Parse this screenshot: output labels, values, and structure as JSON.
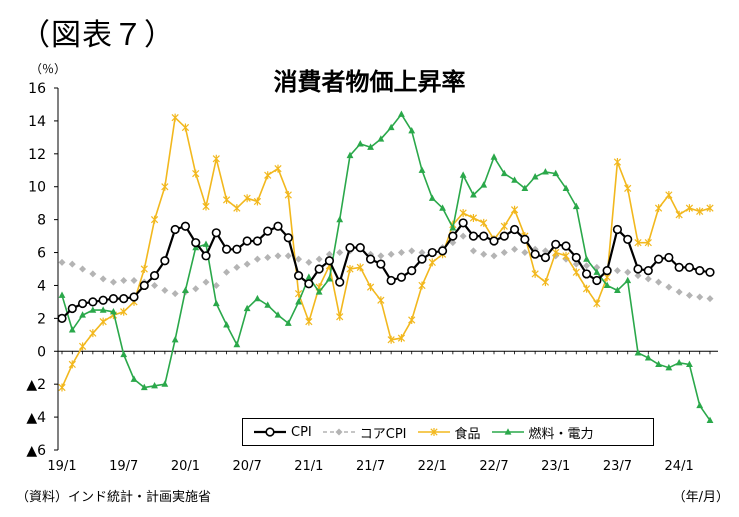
{
  "figure_label": "（図表７）",
  "footer": {
    "source": "（資料）インド統計・計画実施省",
    "x_unit": "（年/月）"
  },
  "chart_data": {
    "type": "line",
    "title": "消費者物価上昇率",
    "ylabel": "（％）",
    "ylim": [
      -6,
      16
    ],
    "y_ticks": [
      16,
      14,
      12,
      10,
      8,
      6,
      4,
      2,
      0,
      -2,
      -4,
      -6
    ],
    "y_tick_labels": [
      "16",
      "14",
      "12",
      "10",
      "8",
      "6",
      "4",
      "2",
      "0",
      "▲2",
      "▲4",
      "▲6"
    ],
    "x_tick_labels": [
      "19/1",
      "19/7",
      "20/1",
      "20/7",
      "21/1",
      "21/7",
      "22/1",
      "22/7",
      "23/1",
      "23/7",
      "24/1"
    ],
    "x_tick_every": 6,
    "legend_position": "bottom-center",
    "grid": false,
    "series": [
      {
        "name": "CPI",
        "color": "#000000",
        "marker": "circle",
        "values": [
          2.0,
          2.6,
          2.9,
          3.0,
          3.1,
          3.2,
          3.2,
          3.3,
          4.0,
          4.6,
          5.5,
          7.4,
          7.6,
          6.6,
          5.8,
          7.2,
          6.2,
          6.2,
          6.7,
          6.7,
          7.3,
          7.6,
          6.9,
          4.6,
          4.1,
          5.0,
          5.5,
          4.2,
          6.3,
          6.3,
          5.6,
          5.3,
          4.3,
          4.5,
          4.9,
          5.6,
          6.0,
          6.1,
          7.0,
          7.8,
          7.0,
          7.0,
          6.7,
          7.0,
          7.4,
          6.8,
          5.9,
          5.7,
          6.5,
          6.4,
          5.7,
          4.7,
          4.3,
          4.9,
          7.4,
          6.8,
          5.0,
          4.9,
          5.6,
          5.7,
          5.1,
          5.1,
          4.9,
          4.8
        ]
      },
      {
        "name": "コアCPI",
        "color": "#b4b4b4",
        "marker": "diamond",
        "values": [
          5.4,
          5.3,
          5.0,
          4.7,
          4.4,
          4.2,
          4.3,
          4.3,
          4.2,
          4.0,
          3.7,
          3.5,
          3.6,
          3.8,
          4.2,
          4.0,
          4.8,
          5.1,
          5.3,
          5.6,
          5.7,
          5.8,
          5.8,
          5.6,
          5.4,
          5.6,
          5.9,
          6.0,
          6.1,
          6.4,
          5.9,
          5.8,
          5.9,
          6.0,
          6.1,
          6.0,
          6.0,
          6.3,
          6.6,
          7.0,
          6.1,
          5.9,
          5.8,
          6.0,
          6.2,
          6.0,
          6.2,
          6.1,
          5.8,
          5.6,
          5.3,
          5.2,
          5.1,
          5.0,
          4.9,
          4.8,
          4.6,
          4.4,
          4.2,
          3.9,
          3.6,
          3.4,
          3.3,
          3.2
        ]
      },
      {
        "name": "食品",
        "color": "#f2b81e",
        "marker": "star",
        "values": [
          -2.2,
          -0.8,
          0.3,
          1.1,
          1.8,
          2.2,
          2.4,
          3.0,
          5.0,
          8.0,
          10.0,
          14.2,
          13.6,
          10.8,
          8.8,
          11.7,
          9.2,
          8.7,
          9.3,
          9.1,
          10.7,
          11.1,
          9.5,
          3.5,
          1.8,
          3.9,
          5.2,
          2.1,
          5.0,
          5.1,
          3.9,
          3.1,
          0.7,
          0.8,
          1.9,
          4.0,
          5.4,
          5.9,
          7.7,
          8.4,
          8.1,
          7.8,
          6.8,
          7.6,
          8.6,
          7.0,
          4.7,
          4.2,
          6.0,
          5.8,
          4.8,
          3.8,
          2.9,
          4.5,
          11.5,
          9.9,
          6.6,
          6.6,
          8.7,
          9.5,
          8.3,
          8.7,
          8.5,
          8.7
        ]
      },
      {
        "name": "燃料・電力",
        "color": "#2aa84a",
        "marker": "triangle",
        "values": [
          3.4,
          1.3,
          2.2,
          2.5,
          2.5,
          2.4,
          -0.2,
          -1.7,
          -2.2,
          -2.1,
          -2.0,
          0.7,
          3.7,
          6.3,
          6.5,
          2.9,
          1.6,
          0.4,
          2.6,
          3.2,
          2.8,
          2.2,
          1.7,
          3.0,
          4.5,
          3.6,
          4.4,
          8.0,
          11.9,
          12.6,
          12.4,
          12.9,
          13.6,
          14.4,
          13.4,
          11.0,
          9.3,
          8.7,
          7.5,
          10.7,
          9.5,
          10.1,
          11.8,
          10.8,
          10.4,
          9.9,
          10.6,
          10.9,
          10.8,
          9.9,
          8.8,
          5.6,
          4.8,
          4.0,
          3.7,
          4.3,
          -0.1,
          -0.4,
          -0.8,
          -1.0,
          -0.7,
          -0.8,
          -3.3,
          -4.2
        ]
      }
    ]
  }
}
